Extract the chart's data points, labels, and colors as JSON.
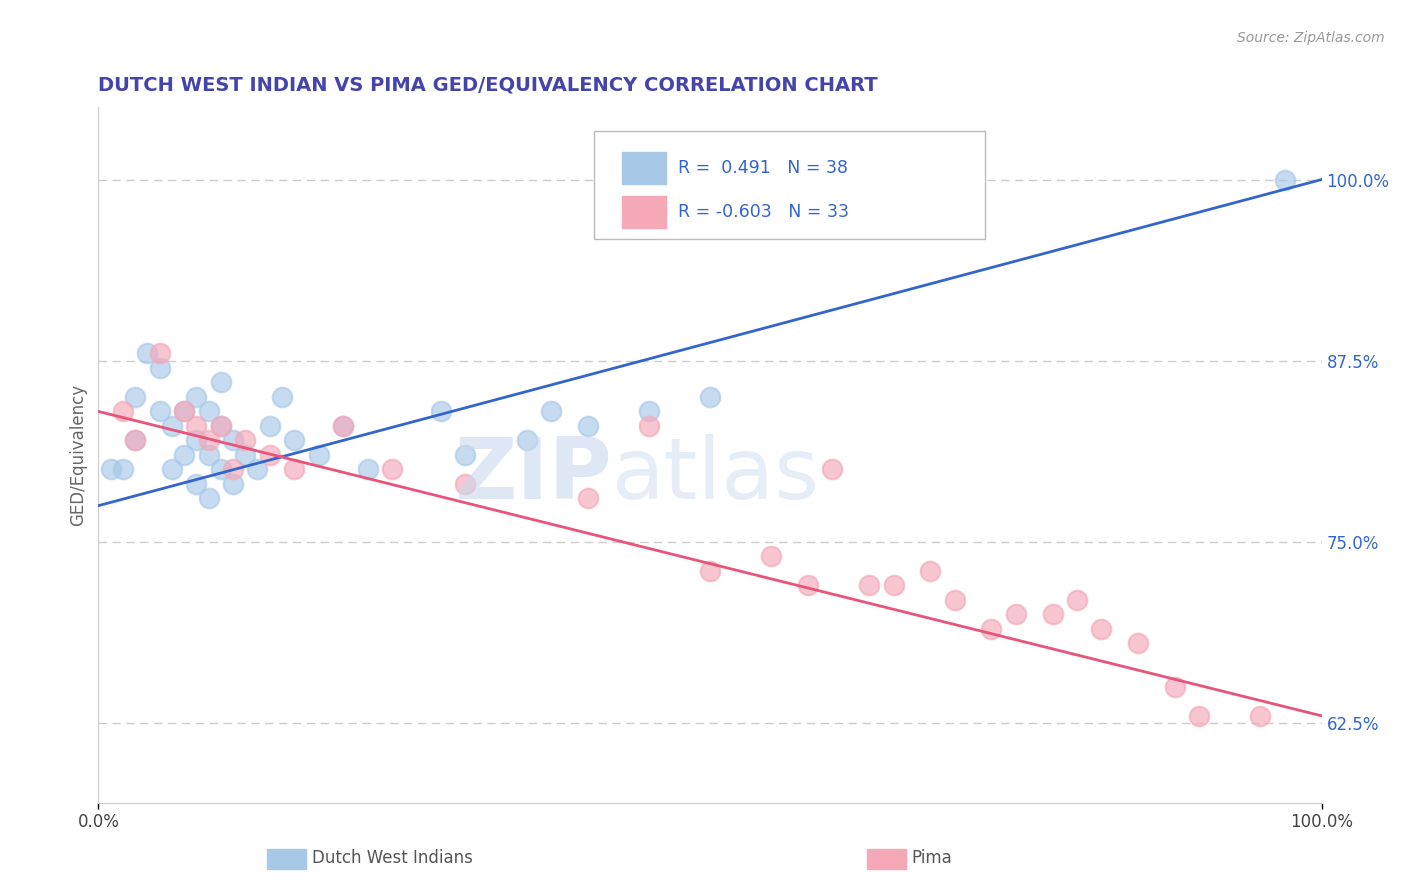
{
  "title": "DUTCH WEST INDIAN VS PIMA GED/EQUIVALENCY CORRELATION CHART",
  "source": "Source: ZipAtlas.com",
  "ylabel": "GED/Equivalency",
  "xlim": [
    0.0,
    100.0
  ],
  "ylim": [
    57.0,
    105.0
  ],
  "yticks_right": [
    62.5,
    75.0,
    87.5,
    100.0
  ],
  "ytick_labels_right": [
    "62.5%",
    "75.0%",
    "87.5%",
    "100.0%"
  ],
  "blue_R": 0.491,
  "blue_N": 38,
  "pink_R": -0.603,
  "pink_N": 33,
  "blue_color": "#A8C8E8",
  "pink_color": "#F4A8B8",
  "blue_line_color": "#3366CC",
  "pink_line_color": "#E8547A",
  "legend_labels": [
    "Dutch West Indians",
    "Pima"
  ],
  "blue_scatter_x": [
    1,
    2,
    3,
    3,
    4,
    5,
    5,
    6,
    6,
    7,
    7,
    8,
    8,
    8,
    9,
    9,
    9,
    10,
    10,
    10,
    11,
    11,
    12,
    13,
    14,
    15,
    16,
    18,
    20,
    22,
    28,
    30,
    35,
    37,
    40,
    45,
    50,
    97
  ],
  "blue_scatter_y": [
    80,
    80,
    82,
    85,
    88,
    84,
    87,
    80,
    83,
    81,
    84,
    79,
    82,
    85,
    78,
    81,
    84,
    80,
    83,
    86,
    79,
    82,
    81,
    80,
    83,
    85,
    82,
    81,
    83,
    80,
    84,
    81,
    82,
    84,
    83,
    84,
    85,
    100
  ],
  "pink_scatter_x": [
    2,
    3,
    5,
    7,
    8,
    9,
    10,
    11,
    12,
    14,
    16,
    20,
    24,
    30,
    40,
    45,
    50,
    55,
    58,
    60,
    63,
    65,
    68,
    70,
    73,
    75,
    78,
    80,
    82,
    85,
    88,
    90,
    95
  ],
  "pink_scatter_y": [
    84,
    82,
    88,
    84,
    83,
    82,
    83,
    80,
    82,
    81,
    80,
    83,
    80,
    79,
    78,
    83,
    73,
    74,
    72,
    80,
    72,
    72,
    73,
    71,
    69,
    70,
    70,
    71,
    69,
    68,
    65,
    63,
    63
  ],
  "background_color": "#FFFFFF",
  "grid_color": "#CCCCCC",
  "blue_line_start_x": 0,
  "blue_line_start_y": 77.5,
  "blue_line_end_x": 100,
  "blue_line_end_y": 100,
  "pink_line_start_x": 0,
  "pink_line_start_y": 84.0,
  "pink_line_end_x": 100,
  "pink_line_end_y": 63.0
}
